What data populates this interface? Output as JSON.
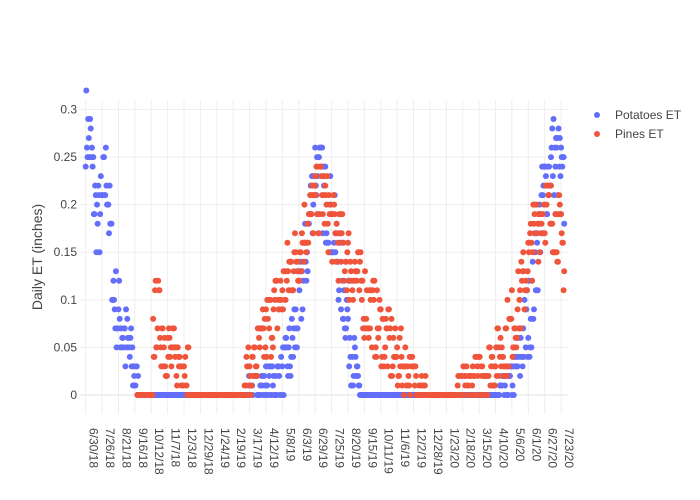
{
  "chart_data": {
    "type": "scatter",
    "title": "",
    "xlabel": "",
    "ylabel": "Daily ET (inches)",
    "ylim": [
      -0.02,
      0.31
    ],
    "xlim": [
      "2018-06-21",
      "2020-08-03"
    ],
    "grid": true,
    "legend_position": "top-right",
    "y_ticks": [
      0,
      0.05,
      0.1,
      0.15,
      0.2,
      0.25,
      0.3
    ],
    "y_tick_labels": [
      "0",
      "0.05",
      "0.1",
      "0.15",
      "0.2",
      "0.25",
      "0.3"
    ],
    "x_ticks": [
      "2018-06-30",
      "2018-07-26",
      "2018-08-21",
      "2018-09-16",
      "2018-10-12",
      "2018-11-07",
      "2018-12-03",
      "2018-12-29",
      "2019-01-24",
      "2019-02-19",
      "2019-03-17",
      "2019-04-12",
      "2019-05-08",
      "2019-06-03",
      "2019-06-29",
      "2019-07-25",
      "2019-08-20",
      "2019-09-15",
      "2019-10-11",
      "2019-11-06",
      "2019-12-02",
      "2019-12-28",
      "2020-01-23",
      "2020-02-18",
      "2020-03-15",
      "2020-04-10",
      "2020-05-06",
      "2020-06-01",
      "2020-06-27",
      "2020-07-23"
    ],
    "x_tick_labels": [
      "6/30/18",
      "7/26/18",
      "8/21/18",
      "9/16/18",
      "10/12/18",
      "11/7/18",
      "12/3/18",
      "12/29/18",
      "1/24/19",
      "2/19/19",
      "3/17/19",
      "4/12/19",
      "5/8/19",
      "6/3/19",
      "6/29/19",
      "7/25/19",
      "8/20/19",
      "9/15/19",
      "10/11/19",
      "11/6/19",
      "12/2/19",
      "12/28/19",
      "1/23/20",
      "2/18/20",
      "3/15/20",
      "4/10/20",
      "5/6/20",
      "6/1/20",
      "6/27/20",
      "7/23/20"
    ],
    "series": [
      {
        "name": "Potatoes ET",
        "color": "#636efa",
        "segments": [
          [
            "2018-06-30",
            0.28
          ],
          [
            "2018-07-08",
            0.26
          ],
          [
            "2018-07-14",
            0.2
          ],
          [
            "2018-07-20",
            0.18
          ],
          [
            "2018-07-26",
            0.2
          ],
          [
            "2018-08-02",
            0.24
          ],
          [
            "2018-08-08",
            0.17
          ],
          [
            "2018-08-14",
            0.1
          ],
          [
            "2018-08-21",
            0.08
          ],
          [
            "2018-08-28",
            0.07
          ],
          [
            "2018-09-04",
            0.05
          ],
          [
            "2018-09-10",
            0.04
          ],
          [
            "2018-09-16",
            0.02
          ],
          [
            "2018-09-22",
            0.01
          ],
          [
            "2018-09-26",
            0.0
          ],
          [
            "2019-03-10",
            0.0
          ],
          [
            "2019-04-08",
            0.01
          ],
          [
            "2019-04-25",
            0.01
          ],
          [
            "2019-05-05",
            0.02
          ],
          [
            "2019-05-20",
            0.04
          ],
          [
            "2019-06-03",
            0.09
          ],
          [
            "2019-06-15",
            0.15
          ],
          [
            "2019-06-29",
            0.24
          ],
          [
            "2019-07-10",
            0.22
          ],
          [
            "2019-07-25",
            0.18
          ],
          [
            "2019-08-05",
            0.14
          ],
          [
            "2019-08-20",
            0.08
          ],
          [
            "2019-08-28",
            0.04
          ],
          [
            "2019-09-05",
            0.01
          ],
          [
            "2019-09-12",
            0.0
          ],
          [
            "2020-04-10",
            0.0
          ],
          [
            "2020-05-01",
            0.01
          ],
          [
            "2020-05-15",
            0.03
          ],
          [
            "2020-05-25",
            0.06
          ],
          [
            "2020-06-05",
            0.09
          ],
          [
            "2020-06-15",
            0.15
          ],
          [
            "2020-06-27",
            0.22
          ],
          [
            "2020-07-10",
            0.25
          ],
          [
            "2020-07-20",
            0.24
          ],
          [
            "2020-07-28",
            0.21
          ]
        ],
        "spread": 0.045
      },
      {
        "name": "Pines ET",
        "color": "#ef553b",
        "segments": [
          [
            "2018-09-20",
            0.0
          ],
          [
            "2018-10-14",
            0.0
          ],
          [
            "2018-10-15",
            0.06
          ],
          [
            "2018-10-20",
            0.09
          ],
          [
            "2018-10-28",
            0.07
          ],
          [
            "2018-11-05",
            0.05
          ],
          [
            "2018-11-12",
            0.04
          ],
          [
            "2018-11-20",
            0.035
          ],
          [
            "2018-12-03",
            0.035
          ],
          [
            "2018-12-10",
            0.03
          ],
          [
            "2018-12-12",
            0.0
          ],
          [
            "2019-03-08",
            0.0
          ],
          [
            "2019-03-12",
            0.02
          ],
          [
            "2019-03-22",
            0.03
          ],
          [
            "2019-04-05",
            0.05
          ],
          [
            "2019-04-20",
            0.08
          ],
          [
            "2019-05-05",
            0.1
          ],
          [
            "2019-05-20",
            0.13
          ],
          [
            "2019-06-03",
            0.15
          ],
          [
            "2019-06-15",
            0.18
          ],
          [
            "2019-06-29",
            0.2
          ],
          [
            "2019-07-10",
            0.21
          ],
          [
            "2019-07-25",
            0.18
          ],
          [
            "2019-08-05",
            0.16
          ],
          [
            "2019-08-20",
            0.14
          ],
          [
            "2019-09-05",
            0.12
          ],
          [
            "2019-09-15",
            0.1
          ],
          [
            "2019-10-01",
            0.08
          ],
          [
            "2019-10-11",
            0.07
          ],
          [
            "2019-10-25",
            0.05
          ],
          [
            "2019-11-06",
            0.04
          ],
          [
            "2019-11-20",
            0.03
          ],
          [
            "2019-12-02",
            0.02
          ],
          [
            "2019-12-15",
            0.01
          ],
          [
            "2019-12-28",
            0.0
          ],
          [
            "2020-02-05",
            0.0
          ],
          [
            "2020-02-18",
            0.01
          ],
          [
            "2020-03-15",
            0.02
          ],
          [
            "2020-04-01",
            0.03
          ],
          [
            "2020-04-20",
            0.05
          ],
          [
            "2020-05-06",
            0.07
          ],
          [
            "2020-05-20",
            0.1
          ],
          [
            "2020-06-01",
            0.14
          ],
          [
            "2020-06-15",
            0.18
          ],
          [
            "2020-06-27",
            0.2
          ],
          [
            "2020-07-10",
            0.19
          ],
          [
            "2020-07-20",
            0.17
          ],
          [
            "2020-07-28",
            0.14
          ]
        ],
        "spread": 0.04
      }
    ]
  }
}
